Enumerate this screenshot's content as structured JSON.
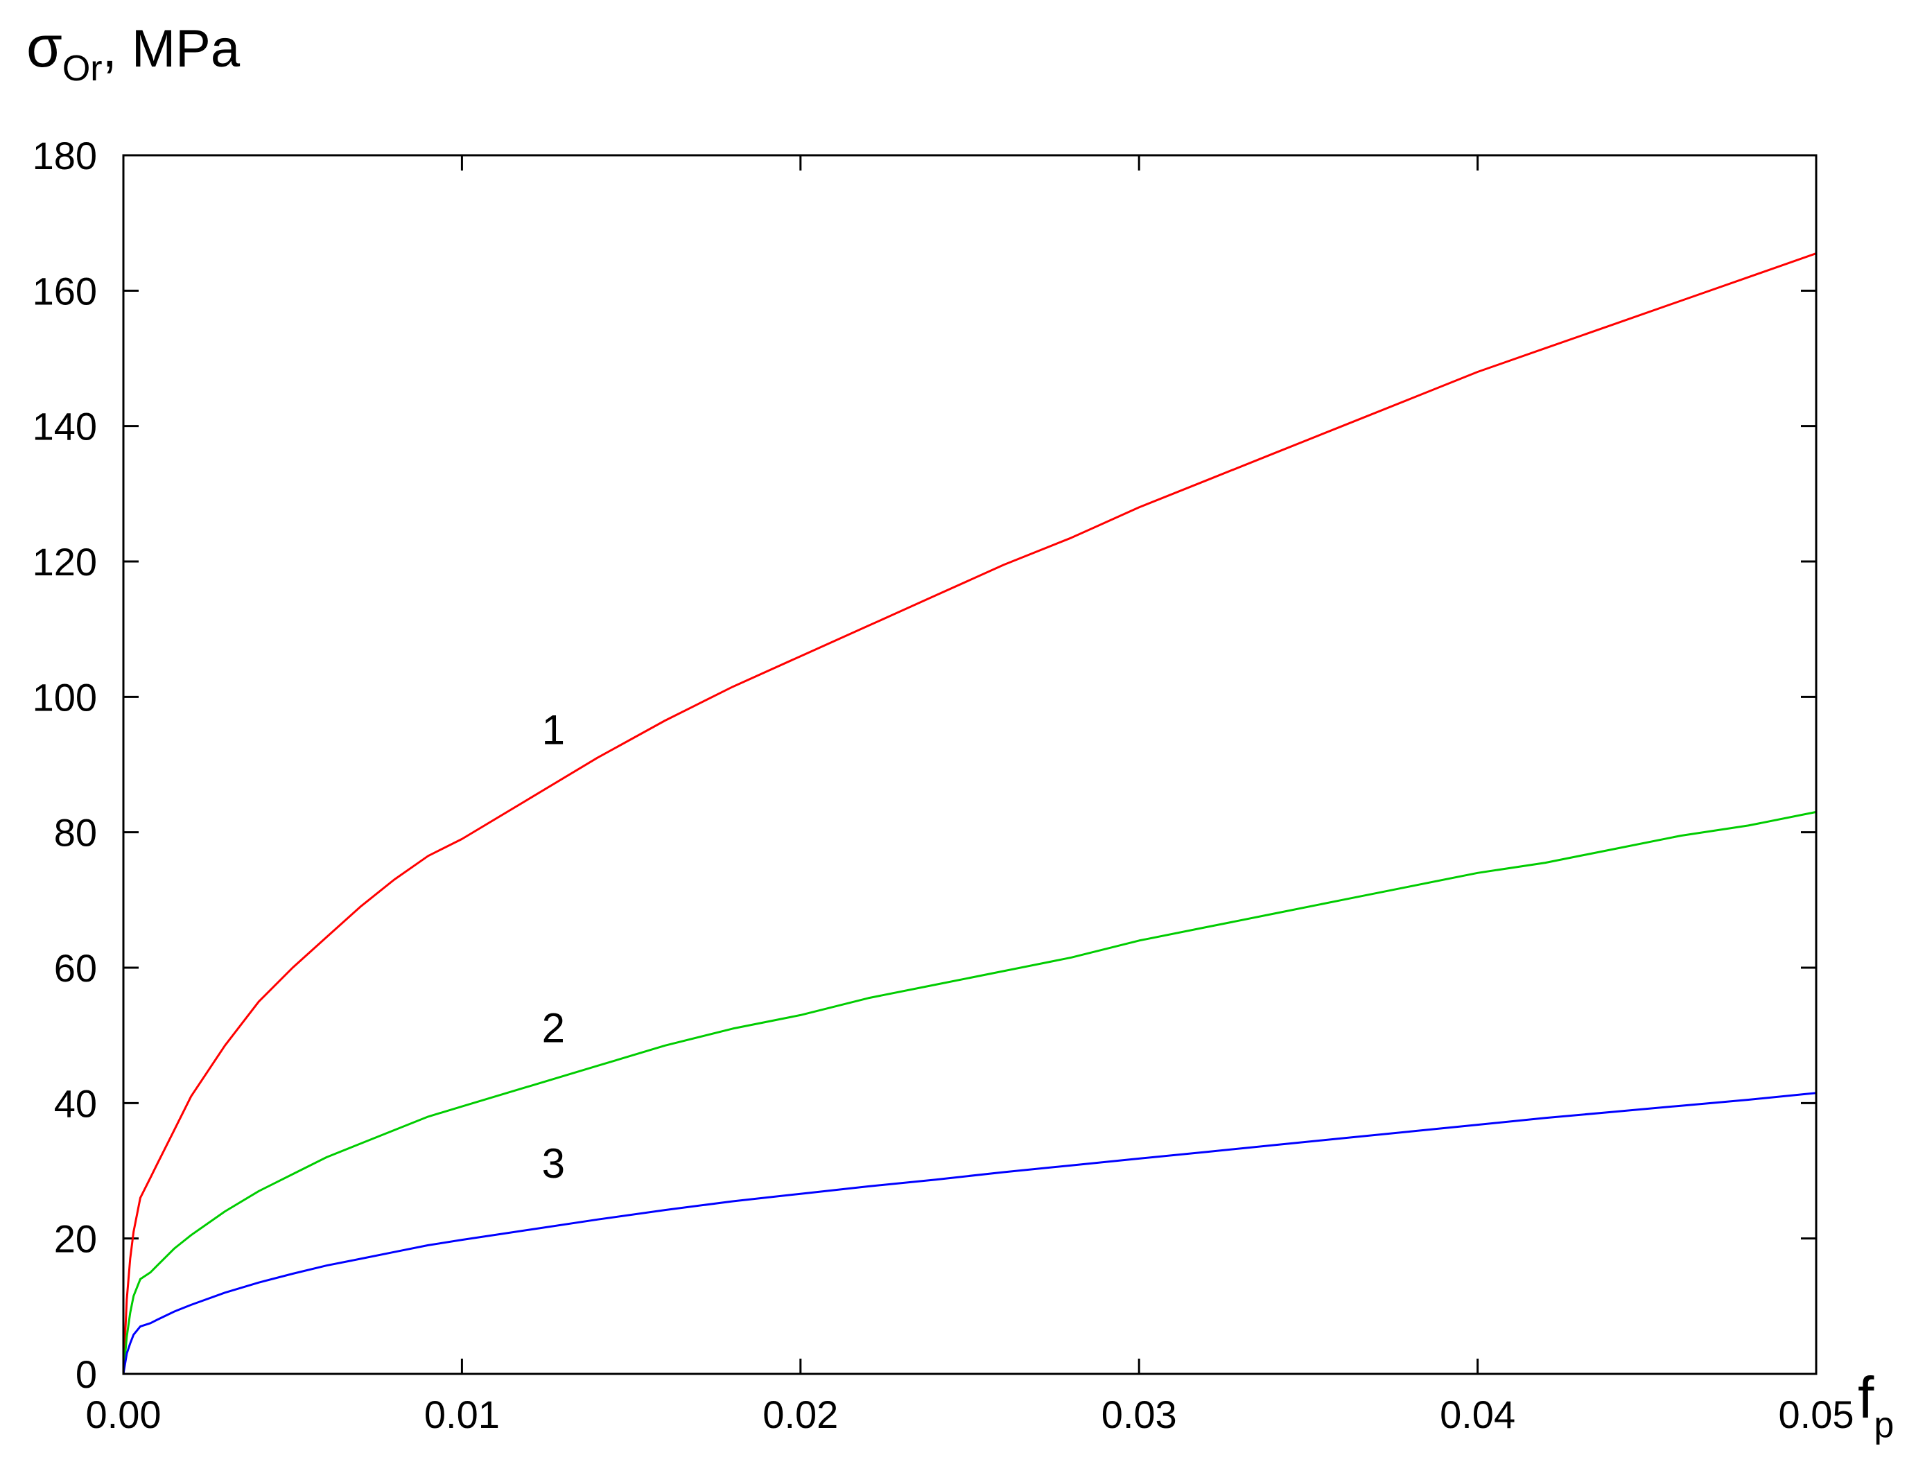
{
  "chart_data": {
    "type": "line",
    "title": "",
    "ylabel": {
      "symbol": "σ",
      "subscript": "Or",
      "unit": ", MPa"
    },
    "xlabel": {
      "symbol": "f",
      "subscript": "p"
    },
    "xlim": [
      0,
      0.05
    ],
    "ylim": [
      0,
      180
    ],
    "x_ticks": [
      0,
      0.01,
      0.02,
      0.03,
      0.04,
      0.05
    ],
    "x_tick_labels": [
      "0.00",
      "0.01",
      "0.02",
      "0.03",
      "0.04",
      "0.05"
    ],
    "y_ticks": [
      0,
      20,
      40,
      60,
      80,
      100,
      120,
      140,
      160,
      180
    ],
    "y_tick_labels": [
      "0",
      "20",
      "40",
      "60",
      "80",
      "100",
      "120",
      "140",
      "160",
      "180"
    ],
    "grid": false,
    "legend": "none",
    "series": [
      {
        "label": "1",
        "color": "#ff0000",
        "label_at": {
          "x": 0.0127,
          "y": 93
        },
        "points": [
          [
            0,
            0
          ],
          [
            0.0001,
            11
          ],
          [
            0.0002,
            17
          ],
          [
            0.0003,
            21
          ],
          [
            0.0005,
            26
          ],
          [
            0.0008,
            29
          ],
          [
            0.001,
            31
          ],
          [
            0.0015,
            36
          ],
          [
            0.002,
            41
          ],
          [
            0.003,
            48.5
          ],
          [
            0.004,
            55
          ],
          [
            0.005,
            60
          ],
          [
            0.006,
            64.5
          ],
          [
            0.007,
            69
          ],
          [
            0.008,
            73
          ],
          [
            0.009,
            76.5
          ],
          [
            0.01,
            79
          ],
          [
            0.012,
            85
          ],
          [
            0.014,
            91
          ],
          [
            0.016,
            96.5
          ],
          [
            0.018,
            101.5
          ],
          [
            0.02,
            106
          ],
          [
            0.022,
            110.5
          ],
          [
            0.024,
            115
          ],
          [
            0.026,
            119.5
          ],
          [
            0.028,
            123.5
          ],
          [
            0.03,
            128
          ],
          [
            0.032,
            132
          ],
          [
            0.034,
            136
          ],
          [
            0.036,
            140
          ],
          [
            0.038,
            144
          ],
          [
            0.04,
            148
          ],
          [
            0.042,
            151.5
          ],
          [
            0.044,
            155
          ],
          [
            0.046,
            158.5
          ],
          [
            0.048,
            162
          ],
          [
            0.05,
            165.5
          ]
        ]
      },
      {
        "label": "2",
        "color": "#00cc00",
        "label_at": {
          "x": 0.0127,
          "y": 49
        },
        "points": [
          [
            0,
            0
          ],
          [
            0.0001,
            5.5
          ],
          [
            0.0002,
            9
          ],
          [
            0.0003,
            11.5
          ],
          [
            0.0005,
            14
          ],
          [
            0.0008,
            15
          ],
          [
            0.001,
            16
          ],
          [
            0.0015,
            18.5
          ],
          [
            0.002,
            20.5
          ],
          [
            0.003,
            24
          ],
          [
            0.004,
            27
          ],
          [
            0.005,
            29.5
          ],
          [
            0.006,
            32
          ],
          [
            0.007,
            34
          ],
          [
            0.008,
            36
          ],
          [
            0.009,
            38
          ],
          [
            0.01,
            39.5
          ],
          [
            0.012,
            42.5
          ],
          [
            0.014,
            45.5
          ],
          [
            0.016,
            48.5
          ],
          [
            0.018,
            51
          ],
          [
            0.02,
            53
          ],
          [
            0.022,
            55.5
          ],
          [
            0.024,
            57.5
          ],
          [
            0.026,
            59.5
          ],
          [
            0.028,
            61.5
          ],
          [
            0.03,
            64
          ],
          [
            0.032,
            66
          ],
          [
            0.034,
            68
          ],
          [
            0.036,
            70
          ],
          [
            0.038,
            72
          ],
          [
            0.04,
            74
          ],
          [
            0.042,
            75.5
          ],
          [
            0.044,
            77.5
          ],
          [
            0.046,
            79.5
          ],
          [
            0.048,
            81
          ],
          [
            0.05,
            83
          ]
        ]
      },
      {
        "label": "3",
        "color": "#0000ff",
        "label_at": {
          "x": 0.0127,
          "y": 29
        },
        "points": [
          [
            0,
            0
          ],
          [
            0.0001,
            3
          ],
          [
            0.0002,
            4.5
          ],
          [
            0.0003,
            5.8
          ],
          [
            0.0005,
            7
          ],
          [
            0.0008,
            7.5
          ],
          [
            0.001,
            8
          ],
          [
            0.0015,
            9.2
          ],
          [
            0.002,
            10.2
          ],
          [
            0.003,
            12
          ],
          [
            0.004,
            13.5
          ],
          [
            0.005,
            14.8
          ],
          [
            0.006,
            16
          ],
          [
            0.007,
            17
          ],
          [
            0.008,
            18
          ],
          [
            0.009,
            19
          ],
          [
            0.01,
            19.8
          ],
          [
            0.012,
            21.3
          ],
          [
            0.014,
            22.8
          ],
          [
            0.016,
            24.2
          ],
          [
            0.018,
            25.5
          ],
          [
            0.02,
            26.6
          ],
          [
            0.022,
            27.7
          ],
          [
            0.024,
            28.7
          ],
          [
            0.026,
            29.8
          ],
          [
            0.028,
            30.8
          ],
          [
            0.03,
            31.8
          ],
          [
            0.032,
            32.8
          ],
          [
            0.034,
            33.8
          ],
          [
            0.036,
            34.8
          ],
          [
            0.038,
            35.8
          ],
          [
            0.04,
            36.8
          ],
          [
            0.042,
            37.8
          ],
          [
            0.044,
            38.7
          ],
          [
            0.046,
            39.6
          ],
          [
            0.048,
            40.5
          ],
          [
            0.05,
            41.5
          ]
        ]
      }
    ]
  }
}
